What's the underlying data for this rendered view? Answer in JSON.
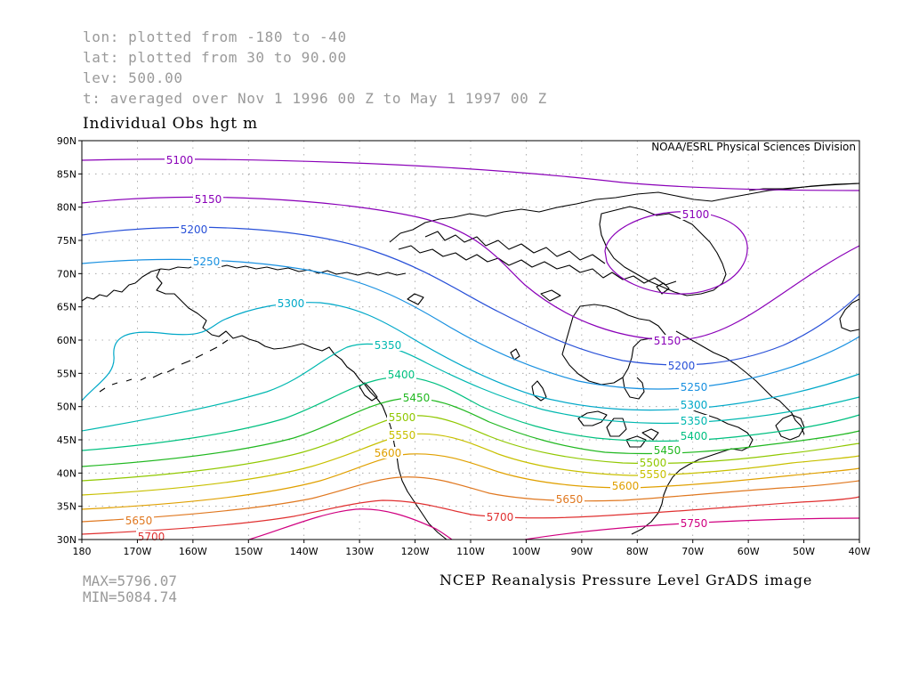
{
  "header": {
    "lon": "lon: plotted from -180 to -40",
    "lat": "lat: plotted from 30 to 90.00",
    "lev": "lev: 500.00",
    "t": "t: averaged over Nov 1 1996 00 Z to May 1 1997 00 Z"
  },
  "title": "Individual Obs hgt m",
  "credit": "NOAA/ESRL Physical Sciences Division",
  "stats": {
    "max": "MAX=5796.07",
    "min": "MIN=5084.74"
  },
  "caption": "NCEP Reanalysis Pressure Level GrADS image",
  "map": {
    "lon_range": [
      -180,
      -40
    ],
    "lat_range": [
      30,
      90
    ],
    "lat_ticks": [
      "30N",
      "35N",
      "40N",
      "45N",
      "50N",
      "55N",
      "60N",
      "65N",
      "70N",
      "75N",
      "80N",
      "85N",
      "90N"
    ],
    "lon_ticks": [
      "180",
      "170W",
      "160W",
      "150W",
      "140W",
      "130W",
      "120W",
      "110W",
      "100W",
      "90W",
      "80W",
      "70W",
      "60W",
      "50W",
      "40W"
    ],
    "grid": true,
    "colors": {
      "5100": "#8a00b8",
      "5150": "#8a00b8",
      "5200": "#2850d8",
      "5250": "#1890e0",
      "5300": "#00a8c8",
      "5350": "#00b8b0",
      "5400": "#00c080",
      "5450": "#20b820",
      "5500": "#90c800",
      "5550": "#c8c000",
      "5600": "#e0a000",
      "5650": "#e07820",
      "5700": "#e03030",
      "5750": "#d00080",
      "coast": "#000000",
      "gridline": "#9a9a9a"
    },
    "contours": [
      {
        "value": "5100",
        "label": "5100"
      },
      {
        "value": "5150",
        "label": "5150"
      },
      {
        "value": "5200",
        "label": "5200"
      },
      {
        "value": "5250",
        "label": "5250"
      },
      {
        "value": "5300",
        "label": "5300"
      },
      {
        "value": "5350",
        "label": "5350"
      },
      {
        "value": "5400",
        "label": "5400"
      },
      {
        "value": "5450",
        "label": "5450"
      },
      {
        "value": "5500",
        "label": "5500"
      },
      {
        "value": "5550",
        "label": "5550"
      },
      {
        "value": "5600",
        "label": "5600"
      },
      {
        "value": "5650",
        "label": "5650"
      },
      {
        "value": "5700",
        "label": "5700"
      },
      {
        "value": "5750",
        "label": "5750"
      }
    ]
  }
}
